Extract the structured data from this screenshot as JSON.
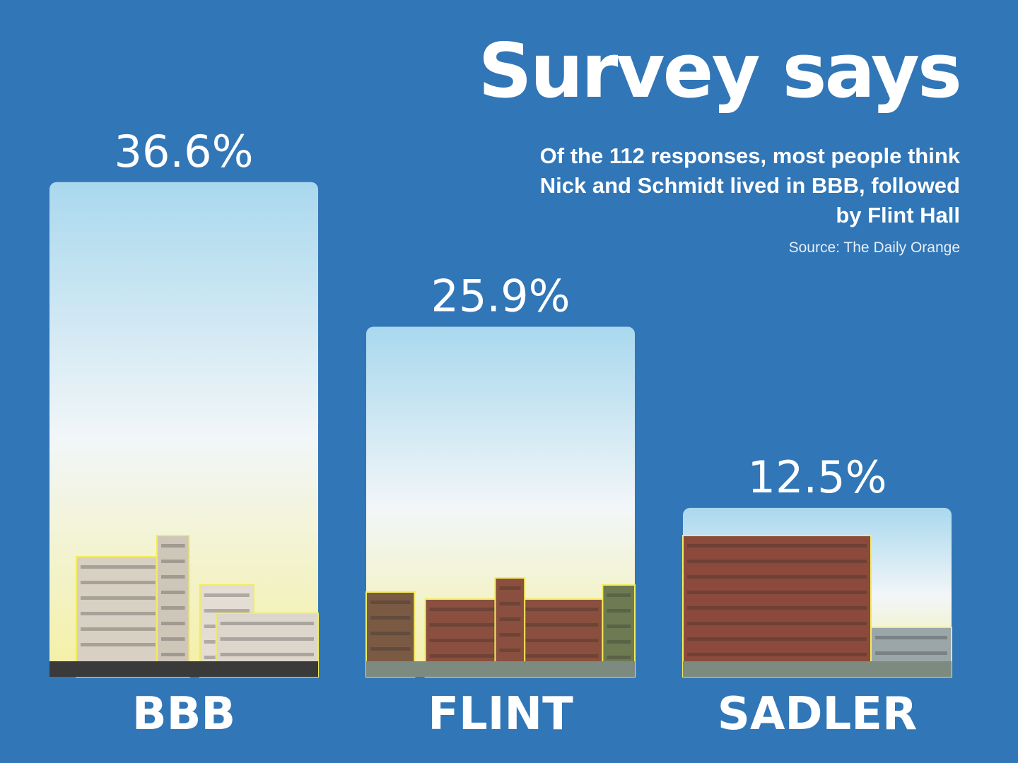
{
  "header": {
    "title": "Survey says",
    "subtitle": "Of the 112 responses, most people think Nick and Schmidt lived in BBB, followed by Flint Hall",
    "source": "Source: The Daily Orange"
  },
  "colors": {
    "background": "#3176b7",
    "sky_top": "#a9d8ee",
    "sky_mid": "#f2f6f8",
    "sky_bottom": "#f4f0a4",
    "outline": "#f3ec5c"
  },
  "chart_data": {
    "type": "bar",
    "title": "Survey says",
    "xlabel": "",
    "ylabel": "",
    "ylim": [
      0,
      40
    ],
    "grid": false,
    "categories": [
      "BBB",
      "FLINT",
      "SADLER"
    ],
    "values": [
      36.6,
      25.9,
      12.5
    ],
    "value_labels": [
      "36.6%",
      "25.9%",
      "12.5%"
    ],
    "images": [
      "residence-hall-photo",
      "residence-hall-photo",
      "residence-hall-photo"
    ]
  }
}
